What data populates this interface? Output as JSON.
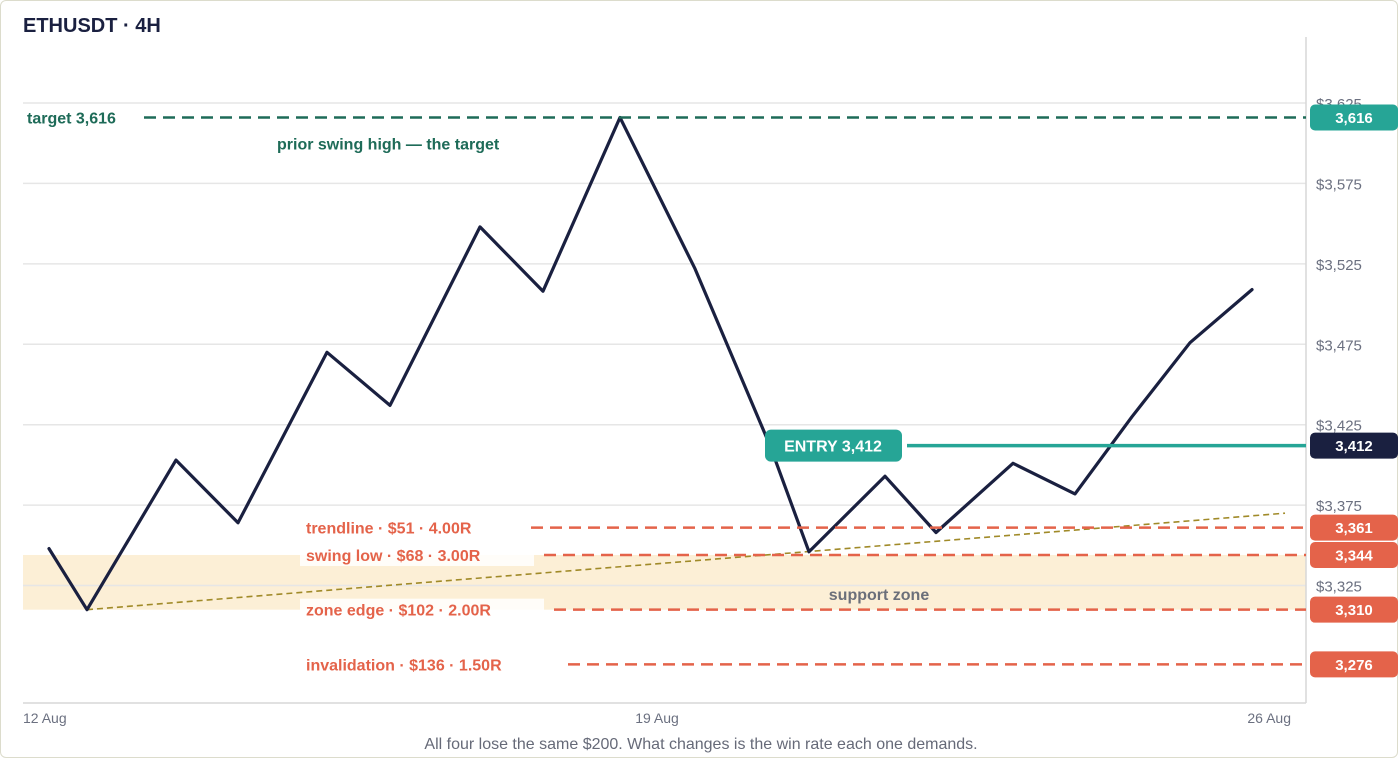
{
  "title": "ETHUSDT · 4H",
  "footnote": "All four lose the same $200. What changes is the win rate each one demands.",
  "colors": {
    "price": "#1a2040",
    "target": "#1e6b58",
    "target_badge": "#26a596",
    "entry": "#26a596",
    "entry_badge": "#1a2040",
    "stop": "#e4634a",
    "trendline": "#a08a28",
    "zone": "#fcefd6",
    "grid": "#e6e6e6"
  },
  "chart_data": {
    "type": "line",
    "title": "ETHUSDT · 4H",
    "xlabel": "",
    "ylabel": "",
    "ylim": [
      3236,
      3640
    ],
    "grid": true,
    "yticks": [
      "$3,325",
      "$3,375",
      "$3,425",
      "$3,475",
      "$3,525",
      "$3,575",
      "$3,625"
    ],
    "xticks": [
      "12 Aug",
      "19 Aug",
      "26 Aug"
    ],
    "series": [
      {
        "x": [
          "12 Aug",
          "12 Aug",
          "13 Aug",
          "14 Aug",
          "15 Aug",
          "15 Aug",
          "16 Aug",
          "17 Aug",
          "18 Aug",
          "18 Aug",
          "19 Aug",
          "20 Aug",
          "20 Aug",
          "21 Aug",
          "21 Aug",
          "22 Aug",
          "23 Aug",
          "24 Aug",
          "25 Aug"
        ],
        "values": [
          3348,
          3310,
          3403,
          3364,
          3470,
          3437,
          3548,
          3508,
          3616,
          3522,
          3412,
          3346,
          3393,
          3358,
          3401,
          3382,
          3430,
          3476,
          3509
        ]
      }
    ],
    "levels": {
      "target": {
        "label": "target",
        "value": 3616,
        "display": "3,616",
        "note": "prior swing high — the target"
      },
      "entry": {
        "label": "ENTRY",
        "value": 3412,
        "display": "3,412"
      },
      "stops": [
        {
          "name": "trendline",
          "risk": "$51",
          "r": "4.00R",
          "value": 3361,
          "display": "3,361"
        },
        {
          "name": "swing low",
          "risk": "$68",
          "r": "3.00R",
          "value": 3344,
          "display": "3,344"
        },
        {
          "name": "zone edge",
          "risk": "$102",
          "r": "2.00R",
          "value": 3310,
          "display": "3,310"
        },
        {
          "name": "invalidation",
          "risk": "$136",
          "r": "1.50R",
          "value": 3276,
          "display": "3,276"
        }
      ]
    },
    "support_zone": {
      "label": "support zone",
      "from": 3310,
      "to": 3344
    },
    "trendline": {
      "from": {
        "x": "12 Aug",
        "value": 3310
      },
      "to": {
        "x": "25 Aug",
        "value": 3370
      }
    }
  }
}
